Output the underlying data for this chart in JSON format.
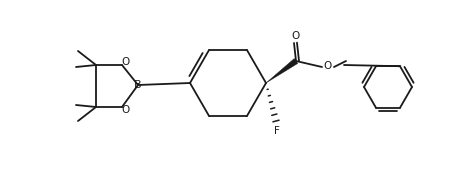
{
  "bg_color": "#ffffff",
  "line_color": "#1a1a1a",
  "lw": 1.3,
  "fig_width": 4.68,
  "fig_height": 1.7,
  "dpi": 100,
  "xlim": [
    0,
    468
  ],
  "ylim": [
    0,
    170
  ]
}
